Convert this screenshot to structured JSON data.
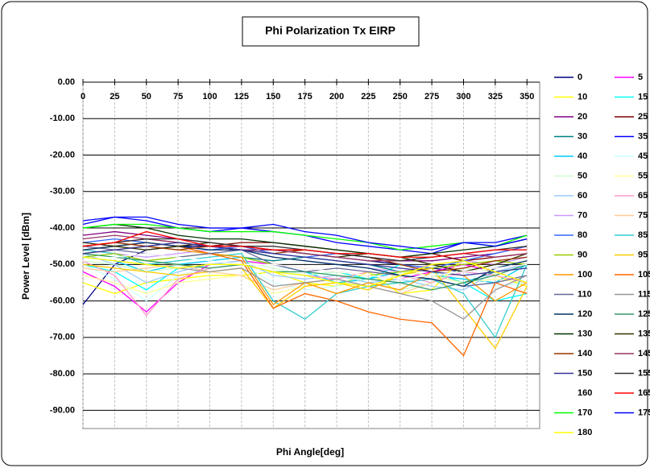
{
  "chart_data": {
    "type": "line",
    "title": "Phi Polarization Tx EIRP",
    "x_label": "Phi Angle[deg]",
    "y_label": "Power Level [dBm]",
    "x": [
      0,
      25,
      50,
      75,
      100,
      125,
      150,
      175,
      200,
      225,
      250,
      275,
      300,
      325,
      350
    ],
    "xlim": [
      0,
      360
    ],
    "xticks": [
      0,
      25,
      50,
      75,
      100,
      125,
      150,
      175,
      200,
      225,
      250,
      275,
      300,
      325,
      350
    ],
    "ylim": [
      -95,
      0
    ],
    "yticks": [
      {
        "value": 0,
        "label": "0.00"
      },
      {
        "value": -10,
        "label": "-10.00"
      },
      {
        "value": -20,
        "label": "-20.00"
      },
      {
        "value": -30,
        "label": "-30.00"
      },
      {
        "value": -40,
        "label": "-40.00"
      },
      {
        "value": -50,
        "label": "-50.00"
      },
      {
        "value": -60,
        "label": "-60.00"
      },
      {
        "value": -70,
        "label": "-70.00"
      },
      {
        "value": -80,
        "label": "-80.00"
      },
      {
        "value": -90,
        "label": "-90.00"
      }
    ],
    "grid": true,
    "legend": "right",
    "series": [
      {
        "name": "0",
        "color": "#000080",
        "values": [
          -61,
          -50,
          -46,
          -45,
          -45,
          -46,
          -46,
          -47,
          -48,
          -49,
          -50,
          -51,
          -52,
          -51,
          -50
        ]
      },
      {
        "name": "5",
        "color": "#ff00ff",
        "values": [
          -52,
          -56,
          -63,
          -55,
          -50,
          -49,
          -50,
          -51,
          -52,
          -53,
          -54,
          -52,
          -50,
          -52,
          -55
        ]
      },
      {
        "name": "10",
        "color": "#ffff00",
        "values": [
          -55,
          -58,
          -55,
          -54,
          -53,
          -53,
          -52,
          -55,
          -56,
          -52,
          -58,
          -57,
          -48,
          -53,
          -56
        ]
      },
      {
        "name": "15",
        "color": "#00ffff",
        "values": [
          -50,
          -52,
          -57,
          -51,
          -50,
          -50,
          -52,
          -53,
          -52,
          -54,
          -50,
          -52,
          -55,
          -60,
          -58
        ]
      },
      {
        "name": "20",
        "color": "#800080",
        "values": [
          -42,
          -41,
          -42,
          -43,
          -44,
          -45,
          -46,
          -46,
          -47,
          -48,
          -49,
          -49,
          -48,
          -47,
          -45
        ]
      },
      {
        "name": "25",
        "color": "#800000",
        "values": [
          -45,
          -44,
          -43,
          -44,
          -45,
          -44,
          -44,
          -45,
          -46,
          -47,
          -48,
          -47,
          -49,
          -48,
          -47
        ]
      },
      {
        "name": "30",
        "color": "#008080",
        "values": [
          -47,
          -46,
          -45,
          -46,
          -47,
          -48,
          -49,
          -48,
          -49,
          -50,
          -52,
          -53,
          -55,
          -52,
          -50
        ]
      },
      {
        "name": "35",
        "color": "#0000ff",
        "values": [
          -39,
          -37,
          -38,
          -40,
          -41,
          -40,
          -41,
          -42,
          -44,
          -45,
          -46,
          -47,
          -44,
          -44,
          -42
        ]
      },
      {
        "name": "40",
        "color": "#00ccff",
        "values": [
          -48,
          -49,
          -52,
          -50,
          -49,
          -48,
          -50,
          -52,
          -55,
          -54,
          -52,
          -53,
          -54,
          -55,
          -50
        ]
      },
      {
        "name": "45",
        "color": "#ccffff",
        "values": [
          -50,
          -54,
          -60,
          -53,
          -51,
          -50,
          -55,
          -57,
          -56,
          -54,
          -55,
          -53,
          -52,
          -56,
          -55
        ]
      },
      {
        "name": "50",
        "color": "#ccffcc",
        "values": [
          -49,
          -50,
          -52,
          -51,
          -50,
          -49,
          -51,
          -53,
          -52,
          -55,
          -57,
          -55,
          -51,
          -52,
          -50
        ]
      },
      {
        "name": "55",
        "color": "#ffff99",
        "values": [
          -53,
          -55,
          -58,
          -55,
          -54,
          -53,
          -58,
          -56,
          -55,
          -57,
          -52,
          -53,
          -55,
          -54,
          -55
        ]
      },
      {
        "name": "60",
        "color": "#99ccff",
        "values": [
          -47,
          -50,
          -55,
          -52,
          -50,
          -49,
          -53,
          -54,
          -53,
          -55,
          -54,
          -56,
          -57,
          -52,
          -50
        ]
      },
      {
        "name": "65",
        "color": "#ff99cc",
        "values": [
          -49,
          -53,
          -64,
          -54,
          -51,
          -50,
          -52,
          -53,
          -54,
          -52,
          -53,
          -55,
          -52,
          -53,
          -55
        ]
      },
      {
        "name": "70",
        "color": "#cc99ff",
        "values": [
          -46,
          -47,
          -48,
          -47,
          -46,
          -46,
          -48,
          -49,
          -50,
          -51,
          -52,
          -50,
          -49,
          -50,
          -48
        ]
      },
      {
        "name": "75",
        "color": "#ffcc99",
        "values": [
          -51,
          -52,
          -51,
          -50,
          -52,
          -53,
          -57,
          -55,
          -54,
          -56,
          -58,
          -55,
          -49,
          -52,
          -55
        ]
      },
      {
        "name": "80",
        "color": "#3366ff",
        "values": [
          -44,
          -43,
          -44,
          -45,
          -46,
          -45,
          -47,
          -48,
          -47,
          -48,
          -50,
          -51,
          -49,
          -47,
          -45
        ]
      },
      {
        "name": "85",
        "color": "#33cccc",
        "values": [
          -46,
          -47,
          -50,
          -49,
          -48,
          -47,
          -60,
          -65,
          -58,
          -56,
          -55,
          -54,
          -58,
          -70,
          -50
        ]
      },
      {
        "name": "90",
        "color": "#99cc00",
        "values": [
          -48,
          -47,
          -49,
          -48,
          -47,
          -48,
          -50,
          -51,
          -52,
          -53,
          -52,
          -51,
          -50,
          -49,
          -50
        ]
      },
      {
        "name": "95",
        "color": "#ffcc00",
        "values": [
          -50,
          -51,
          -52,
          -53,
          -52,
          -51,
          -62,
          -56,
          -55,
          -57,
          -53,
          -51,
          -62,
          -73,
          -56
        ]
      },
      {
        "name": "100",
        "color": "#ff9900",
        "values": [
          -47,
          -46,
          -45,
          -46,
          -47,
          -48,
          -61,
          -55,
          -58,
          -55,
          -57,
          -52,
          -53,
          -60,
          -55
        ]
      },
      {
        "name": "105",
        "color": "#ff6600",
        "values": [
          -46,
          -45,
          -44,
          -45,
          -47,
          -49,
          -62,
          -58,
          -60,
          -63,
          -65,
          -66,
          -75,
          -55,
          -58
        ]
      },
      {
        "name": "110",
        "color": "#666699",
        "values": [
          -45,
          -46,
          -47,
          -48,
          -47,
          -46,
          -50,
          -52,
          -51,
          -52,
          -53,
          -54,
          -56,
          -55,
          -53
        ]
      },
      {
        "name": "115",
        "color": "#969696",
        "values": [
          -48,
          -49,
          -50,
          -51,
          -52,
          -51,
          -56,
          -55,
          -54,
          -56,
          -58,
          -60,
          -65,
          -57,
          -53
        ]
      },
      {
        "name": "120",
        "color": "#003366",
        "values": [
          -46,
          -45,
          -44,
          -45,
          -46,
          -46,
          -48,
          -49,
          -50,
          -51,
          -53,
          -54,
          -56,
          -51,
          -49
        ]
      },
      {
        "name": "125",
        "color": "#339966",
        "values": [
          -47,
          -48,
          -49,
          -50,
          -51,
          -50,
          -52,
          -52,
          -53,
          -54,
          -55,
          -57,
          -55,
          -53,
          -50
        ]
      },
      {
        "name": "130",
        "color": "#003300",
        "values": [
          -40,
          -39,
          -40,
          -42,
          -43,
          -43,
          -44,
          -45,
          -46,
          -47,
          -48,
          -47,
          -46,
          -45,
          -43
        ]
      },
      {
        "name": "135",
        "color": "#333300",
        "values": [
          -44,
          -45,
          -46,
          -45,
          -44,
          -45,
          -46,
          -47,
          -48,
          -47,
          -48,
          -50,
          -52,
          -50,
          -47
        ]
      },
      {
        "name": "140",
        "color": "#993300",
        "values": [
          -45,
          -44,
          -45,
          -46,
          -45,
          -46,
          -47,
          -46,
          -47,
          -48,
          -50,
          -52,
          -51,
          -49,
          -48
        ]
      },
      {
        "name": "145",
        "color": "#993366",
        "values": [
          -43,
          -42,
          -43,
          -44,
          -45,
          -46,
          -46,
          -47,
          -48,
          -49,
          -49,
          -48,
          -47,
          -48,
          -47
        ]
      },
      {
        "name": "150",
        "color": "#333399",
        "values": [
          -47,
          -46,
          -45,
          -44,
          -45,
          -46,
          -47,
          -48,
          -49,
          -50,
          -51,
          -52,
          -53,
          -52,
          -51
        ]
      },
      {
        "name": "155",
        "color": "#333333",
        "values": [
          -45,
          -44,
          -43,
          -43,
          -44,
          -45,
          -45,
          -46,
          -47,
          -48,
          -49,
          -48,
          -47,
          -46,
          -45
        ]
      },
      {
        "name": "160",
        "color": "#ffffff",
        "values": [
          -49,
          -48,
          -47,
          -48,
          -49,
          -50,
          -50,
          -51,
          -52,
          -53,
          -54,
          -53,
          -52,
          -51,
          -50
        ]
      },
      {
        "name": "165",
        "color": "#ff0000",
        "values": [
          -45,
          -44,
          -41,
          -43,
          -45,
          -45,
          -46,
          -46,
          -47,
          -47,
          -48,
          -48,
          -47,
          -46,
          -46
        ]
      },
      {
        "name": "170",
        "color": "#00ff00",
        "values": [
          -40,
          -39,
          -39,
          -40,
          -41,
          -41,
          -41,
          -42,
          -43,
          -44,
          -46,
          -45,
          -44,
          -45,
          -42
        ]
      },
      {
        "name": "175",
        "color": "#0000ff",
        "values": [
          -38,
          -37,
          -37,
          -39,
          -40,
          -40,
          -39,
          -41,
          -42,
          -44,
          -45,
          -46,
          -44,
          -45,
          -43
        ]
      },
      {
        "name": "180",
        "color": "#ffff00",
        "values": [
          -48,
          -49,
          -50,
          -51,
          -50,
          -50,
          -52,
          -53,
          -55,
          -56,
          -53,
          -50,
          -49,
          -52,
          -55
        ]
      }
    ]
  }
}
